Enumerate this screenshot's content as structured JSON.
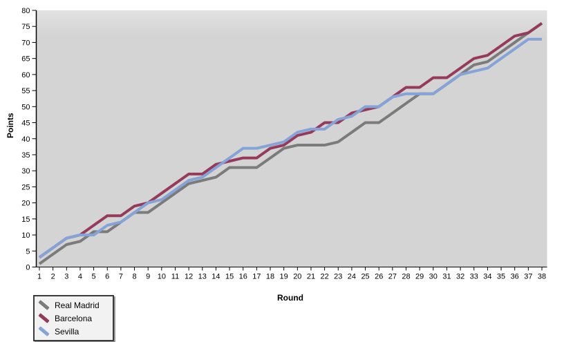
{
  "chart_data": {
    "type": "line",
    "title": "",
    "xlabel": "Round",
    "ylabel": "Points",
    "xlim": [
      1,
      38
    ],
    "ylim": [
      0,
      80
    ],
    "ytick_step": 5,
    "grid": "off",
    "legend_position": "bottom-left",
    "plot_bg": "#d4d4d4",
    "plot_bg_top": "#e2e2e2",
    "axis_color": "#000000",
    "rounds": [
      1,
      2,
      3,
      4,
      5,
      6,
      7,
      8,
      9,
      10,
      11,
      12,
      13,
      14,
      15,
      16,
      17,
      18,
      19,
      20,
      21,
      22,
      23,
      24,
      25,
      26,
      27,
      28,
      29,
      30,
      31,
      32,
      33,
      34,
      35,
      36,
      37,
      38
    ],
    "yticks": [
      0,
      5,
      10,
      15,
      20,
      25,
      30,
      35,
      40,
      45,
      50,
      55,
      60,
      65,
      70,
      75,
      80
    ],
    "series": [
      {
        "name": "Real Madrid",
        "color": "#7b7b7b",
        "values": [
          1,
          4,
          7,
          8,
          11,
          11,
          14,
          17,
          17,
          20,
          23,
          26,
          27,
          28,
          31,
          31,
          31,
          34,
          37,
          38,
          38,
          38,
          39,
          42,
          45,
          45,
          48,
          51,
          54,
          54,
          57,
          60,
          63,
          64,
          67,
          70,
          73,
          76
        ]
      },
      {
        "name": "Barcelona",
        "color": "#963a5c",
        "values": [
          3,
          6,
          9,
          10,
          13,
          16,
          16,
          19,
          20,
          23,
          26,
          29,
          29,
          32,
          33,
          34,
          34,
          37,
          38,
          41,
          42,
          45,
          45,
          48,
          49,
          50,
          53,
          56,
          56,
          59,
          59,
          62,
          65,
          66,
          69,
          72,
          73,
          76
        ]
      },
      {
        "name": "Sevilla",
        "color": "#85a3d6",
        "values": [
          3,
          6,
          9,
          10,
          10,
          13,
          14,
          17,
          20,
          21,
          24,
          27,
          28,
          31,
          34,
          37,
          37,
          38,
          39,
          42,
          43,
          43,
          46,
          47,
          50,
          50,
          53,
          54,
          54,
          54,
          57,
          60,
          61,
          62,
          65,
          68,
          71,
          71
        ]
      }
    ]
  }
}
